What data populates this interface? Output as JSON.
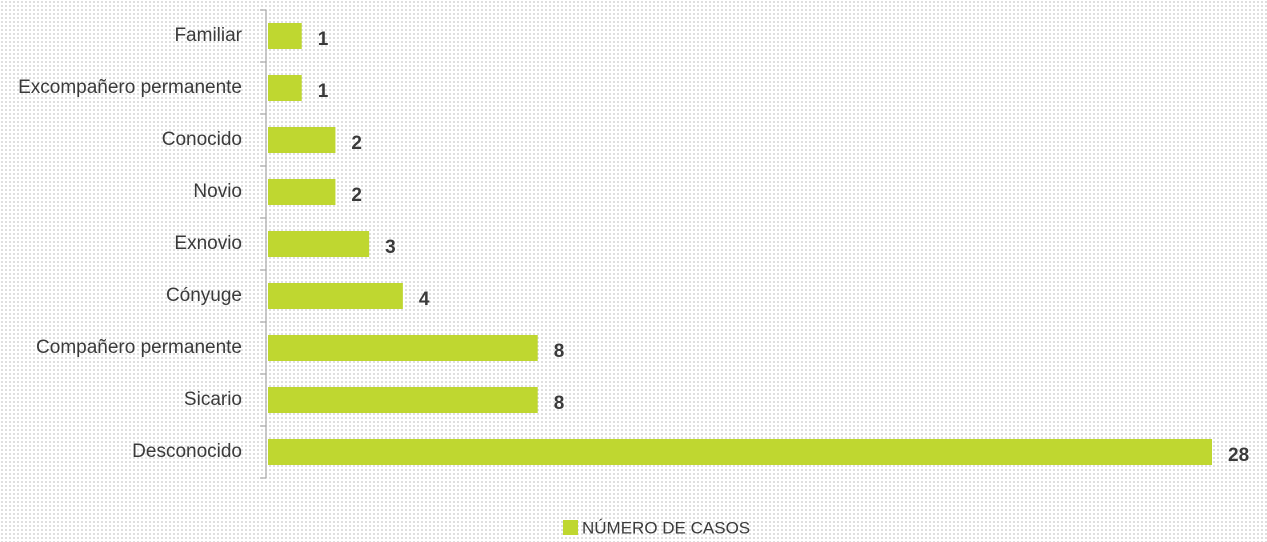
{
  "chart_data": {
    "type": "bar",
    "orientation": "horizontal",
    "categories": [
      "Familiar",
      "Excompañero permanente",
      "Conocido",
      "Novio",
      "Exnovio",
      "Cónyuge",
      "Compañero permanente",
      "Sicario",
      "Desconocido"
    ],
    "series": [
      {
        "name": "NÚMERO DE CASOS",
        "color": "#bfd730",
        "values": [
          1,
          1,
          2,
          2,
          3,
          4,
          8,
          8,
          28
        ]
      }
    ],
    "legend": "bottom"
  }
}
